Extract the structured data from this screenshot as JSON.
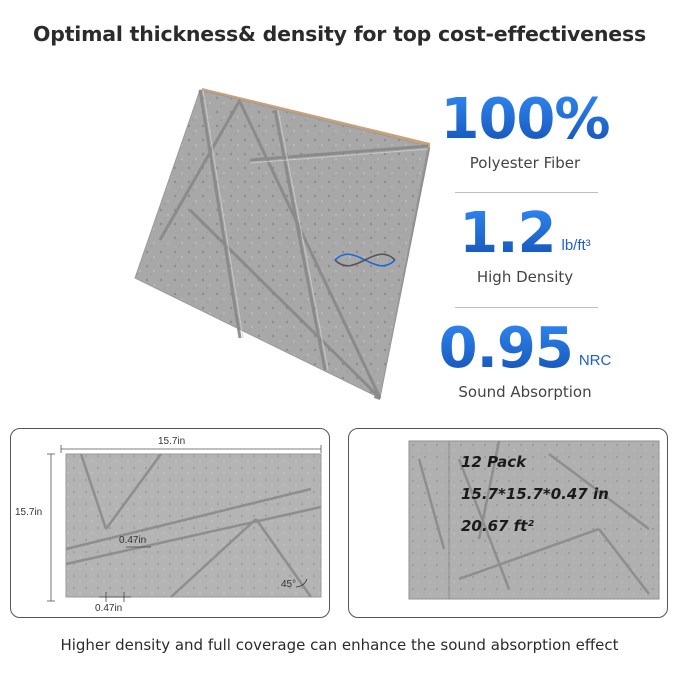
{
  "headline": "Optimal thickness& density for top cost-effectiveness",
  "footer": "Higher density and full coverage can enhance the sound absorption effect",
  "stats": [
    {
      "value": "100%",
      "unit": "",
      "label": "Polyester Fiber"
    },
    {
      "value": "1.2",
      "unit": "lb/ft³",
      "label": "High Density"
    },
    {
      "value": "0.95",
      "unit": "NRC",
      "label": "Sound Absorption"
    }
  ],
  "dimensions": {
    "width": "15.7in",
    "height": "15.7in",
    "groove_width": "0.47in",
    "thickness": "0.47in",
    "angle": "45°"
  },
  "pack": {
    "count": "12 Pack",
    "size": "15.7*15.7*0.47 in",
    "area": "20.67 ft²"
  },
  "colors": {
    "accent": "#1f6bd6",
    "panel": "#a9a9a9"
  }
}
